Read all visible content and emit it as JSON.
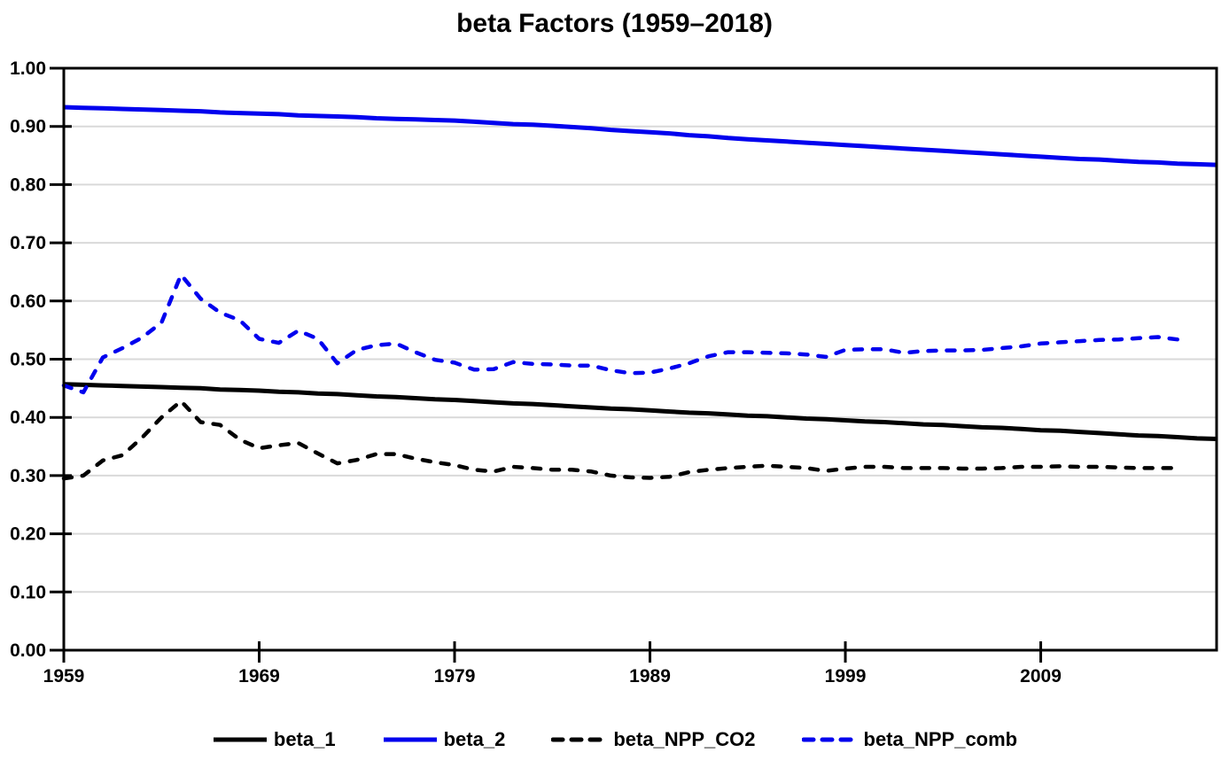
{
  "title": "beta Factors (1959–2018)",
  "colors": {
    "black": "#000000",
    "blue": "#0000EE",
    "grid": "#D9D9D9",
    "frame": "#000000",
    "background": "#FFFFFF"
  },
  "legend": [
    {
      "label": "beta_1",
      "color": "#000000",
      "style": "solid"
    },
    {
      "label": "beta_2",
      "color": "#0000EE",
      "style": "solid"
    },
    {
      "label": "beta_NPP_CO2",
      "color": "#000000",
      "style": "dashed"
    },
    {
      "label": "beta_NPP_comb",
      "color": "#0000EE",
      "style": "dashed"
    }
  ],
  "chart_data": {
    "type": "line",
    "title": "beta Factors (1959–2018)",
    "xlabel": "",
    "ylabel": "",
    "xlim": [
      1959,
      2018
    ],
    "ylim": [
      0.0,
      1.0
    ],
    "x_ticks": [
      1959,
      1969,
      1979,
      1989,
      1999,
      2009
    ],
    "y_tick_step": 0.1,
    "grid": true,
    "legend_position": "bottom",
    "series": [
      {
        "name": "beta_1",
        "color": "#000000",
        "style": "solid",
        "start_year": 1959,
        "end_year": 2018,
        "values": [
          0.457,
          0.456,
          0.455,
          0.454,
          0.453,
          0.452,
          0.451,
          0.45,
          0.448,
          0.447,
          0.446,
          0.444,
          0.443,
          0.441,
          0.44,
          0.438,
          0.436,
          0.435,
          0.433,
          0.431,
          0.43,
          0.428,
          0.426,
          0.424,
          0.423,
          0.421,
          0.419,
          0.417,
          0.415,
          0.414,
          0.412,
          0.41,
          0.408,
          0.407,
          0.405,
          0.403,
          0.402,
          0.4,
          0.398,
          0.397,
          0.395,
          0.393,
          0.392,
          0.39,
          0.388,
          0.387,
          0.385,
          0.383,
          0.382,
          0.38,
          0.378,
          0.377,
          0.375,
          0.373,
          0.371,
          0.369,
          0.368,
          0.366,
          0.364,
          0.363
        ]
      },
      {
        "name": "beta_2",
        "color": "#0000EE",
        "style": "solid",
        "start_year": 1959,
        "end_year": 2018,
        "values": [
          0.933,
          0.932,
          0.931,
          0.93,
          0.929,
          0.928,
          0.927,
          0.926,
          0.924,
          0.923,
          0.922,
          0.921,
          0.919,
          0.918,
          0.917,
          0.916,
          0.914,
          0.913,
          0.912,
          0.911,
          0.91,
          0.908,
          0.906,
          0.904,
          0.903,
          0.901,
          0.899,
          0.897,
          0.894,
          0.892,
          0.89,
          0.888,
          0.885,
          0.883,
          0.88,
          0.878,
          0.876,
          0.874,
          0.872,
          0.87,
          0.868,
          0.866,
          0.864,
          0.862,
          0.86,
          0.858,
          0.856,
          0.854,
          0.852,
          0.85,
          0.848,
          0.846,
          0.844,
          0.843,
          0.841,
          0.839,
          0.838,
          0.836,
          0.835,
          0.834
        ]
      },
      {
        "name": "beta_NPP_CO2",
        "color": "#000000",
        "style": "dashed",
        "start_year": 1959,
        "end_year": 2016,
        "values": [
          0.295,
          0.3,
          0.326,
          0.335,
          0.365,
          0.4,
          0.428,
          0.392,
          0.387,
          0.362,
          0.347,
          0.352,
          0.356,
          0.338,
          0.321,
          0.327,
          0.337,
          0.337,
          0.329,
          0.323,
          0.318,
          0.31,
          0.307,
          0.315,
          0.313,
          0.31,
          0.31,
          0.307,
          0.3,
          0.297,
          0.296,
          0.298,
          0.306,
          0.31,
          0.313,
          0.315,
          0.317,
          0.315,
          0.313,
          0.308,
          0.312,
          0.315,
          0.315,
          0.313,
          0.313,
          0.313,
          0.312,
          0.312,
          0.313,
          0.315,
          0.315,
          0.316,
          0.315,
          0.315,
          0.314,
          0.313,
          0.313,
          0.313
        ]
      },
      {
        "name": "beta_NPP_comb",
        "color": "#0000EE",
        "style": "dashed",
        "start_year": 1959,
        "end_year": 2016,
        "values": [
          0.455,
          0.443,
          0.503,
          0.519,
          0.537,
          0.563,
          0.645,
          0.604,
          0.58,
          0.567,
          0.535,
          0.528,
          0.549,
          0.535,
          0.493,
          0.516,
          0.524,
          0.527,
          0.512,
          0.499,
          0.494,
          0.482,
          0.483,
          0.495,
          0.492,
          0.491,
          0.489,
          0.489,
          0.481,
          0.476,
          0.477,
          0.484,
          0.493,
          0.505,
          0.512,
          0.512,
          0.511,
          0.51,
          0.508,
          0.504,
          0.516,
          0.517,
          0.517,
          0.511,
          0.514,
          0.515,
          0.515,
          0.516,
          0.519,
          0.522,
          0.527,
          0.529,
          0.531,
          0.533,
          0.534,
          0.536,
          0.538,
          0.534
        ]
      }
    ]
  }
}
